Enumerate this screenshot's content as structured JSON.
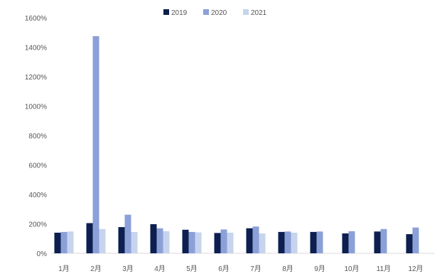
{
  "chart_data": {
    "type": "bar",
    "title": "",
    "xlabel": "",
    "ylabel": "",
    "categories": [
      "1月",
      "2月",
      "3月",
      "4月",
      "5月",
      "6月",
      "7月",
      "8月",
      "9月",
      "10月",
      "11月",
      "12月"
    ],
    "series": [
      {
        "name": "2019",
        "color": "#0d1f4f",
        "values": [
          140,
          205,
          178,
          198,
          160,
          138,
          170,
          145,
          145,
          135,
          148,
          130
        ]
      },
      {
        "name": "2020",
        "color": "#8ca0d8",
        "values": [
          145,
          1475,
          262,
          170,
          145,
          162,
          182,
          148,
          148,
          150,
          165,
          175
        ]
      },
      {
        "name": "2021",
        "color": "#c6d4ee",
        "values": [
          148,
          165,
          145,
          150,
          142,
          140,
          135,
          140,
          null,
          null,
          null,
          null
        ]
      }
    ],
    "yticks": [
      "0%",
      "200%",
      "400%",
      "600%",
      "800%",
      "1000%",
      "1200%",
      "1400%",
      "1600%"
    ],
    "ylim": [
      0,
      1600
    ],
    "grid": false,
    "legend_position": "top-center"
  }
}
